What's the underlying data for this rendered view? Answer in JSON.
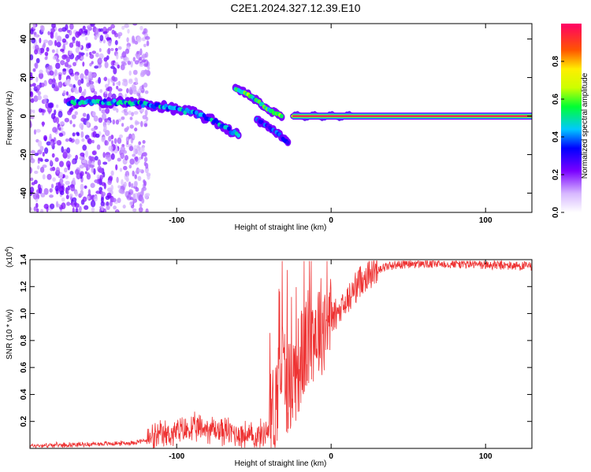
{
  "title": "C2E1.2024.327.12.39.E10",
  "colorbar": {
    "label": "Normalized spectral amplitude",
    "ticks": [
      "0.0",
      "0.2",
      "0.4",
      "0.6",
      "0.8"
    ],
    "tick_values": [
      0.0,
      0.2,
      0.4,
      0.6,
      0.8
    ],
    "range": [
      0,
      1
    ]
  },
  "chart_data": [
    {
      "type": "heatmap",
      "xlabel": "Height of straight line (km)",
      "ylabel": "Frequency (Hz)",
      "xlim": [
        -195,
        130
      ],
      "ylim": [
        -50,
        48
      ],
      "xticks": [
        -100,
        0,
        100
      ],
      "xtick_labels": [
        "-100",
        "0",
        "100"
      ],
      "yticks": [
        -40,
        -20,
        0,
        20,
        40
      ],
      "ytick_labels": [
        "-40",
        "-20",
        "0",
        "20",
        "40"
      ],
      "features": {
        "noise_region_x": [
          -195,
          -118
        ],
        "main_trace": {
          "x": [
            -170,
            -150,
            -130,
            -110,
            -90,
            -75,
            -60
          ],
          "y": [
            7,
            7.5,
            7,
            5,
            2,
            -3,
            -10
          ],
          "amplitude": 0.45
        },
        "branch_upper": {
          "x": [
            -62,
            -55,
            -48,
            -40,
            -32
          ],
          "y": [
            14,
            12,
            8,
            3,
            0
          ],
          "amplitude": 0.55
        },
        "branch_lower": {
          "x": [
            -48,
            -40,
            -33,
            -28
          ],
          "y": [
            -2,
            -6,
            -10,
            -14
          ],
          "amplitude": 0.35
        },
        "carrier_start_x": -25,
        "carrier_line": {
          "x": [
            -25,
            130
          ],
          "y": 0,
          "amplitude": 1.0
        }
      }
    },
    {
      "type": "line",
      "xlabel": "Height of straight line (km)",
      "ylabel": "SNR (10 * v/v)",
      "y_multiplier_label": "(x10",
      "y_multiplier_exp": "4",
      "y_multiplier_close": ")",
      "xlim": [
        -195,
        130
      ],
      "ylim": [
        0,
        1.4
      ],
      "xticks": [
        -100,
        0,
        100
      ],
      "xtick_labels": [
        "-100",
        "0",
        "100"
      ],
      "yticks": [
        0.2,
        0.4,
        0.6,
        0.8,
        1.0,
        1.2,
        1.4
      ],
      "ytick_labels": [
        "0.2",
        "0.4",
        "0.6",
        "0.8",
        "1.0",
        "1.2",
        "1.4"
      ],
      "series": [
        {
          "color": "#ee3333",
          "x": [
            -195,
            -160,
            -130,
            -120,
            -110,
            -100,
            -90,
            -80,
            -70,
            -60,
            -50,
            -45,
            -40,
            -35,
            -32,
            -30,
            -28,
            -25,
            -22,
            -20,
            -18,
            -15,
            -12,
            -10,
            -5,
            0,
            5,
            10,
            15,
            20,
            25,
            30,
            40,
            50,
            60,
            80,
            100,
            130
          ],
          "y": [
            0.02,
            0.03,
            0.04,
            0.06,
            0.09,
            0.12,
            0.14,
            0.15,
            0.13,
            0.11,
            0.08,
            0.1,
            0.15,
            0.4,
            0.65,
            0.55,
            0.45,
            0.5,
            0.6,
            0.65,
            0.7,
            0.8,
            0.85,
            0.88,
            0.93,
            0.98,
            1.0,
            1.08,
            1.18,
            1.26,
            1.3,
            1.33,
            1.36,
            1.37,
            1.37,
            1.37,
            1.36,
            1.35
          ]
        }
      ]
    }
  ]
}
